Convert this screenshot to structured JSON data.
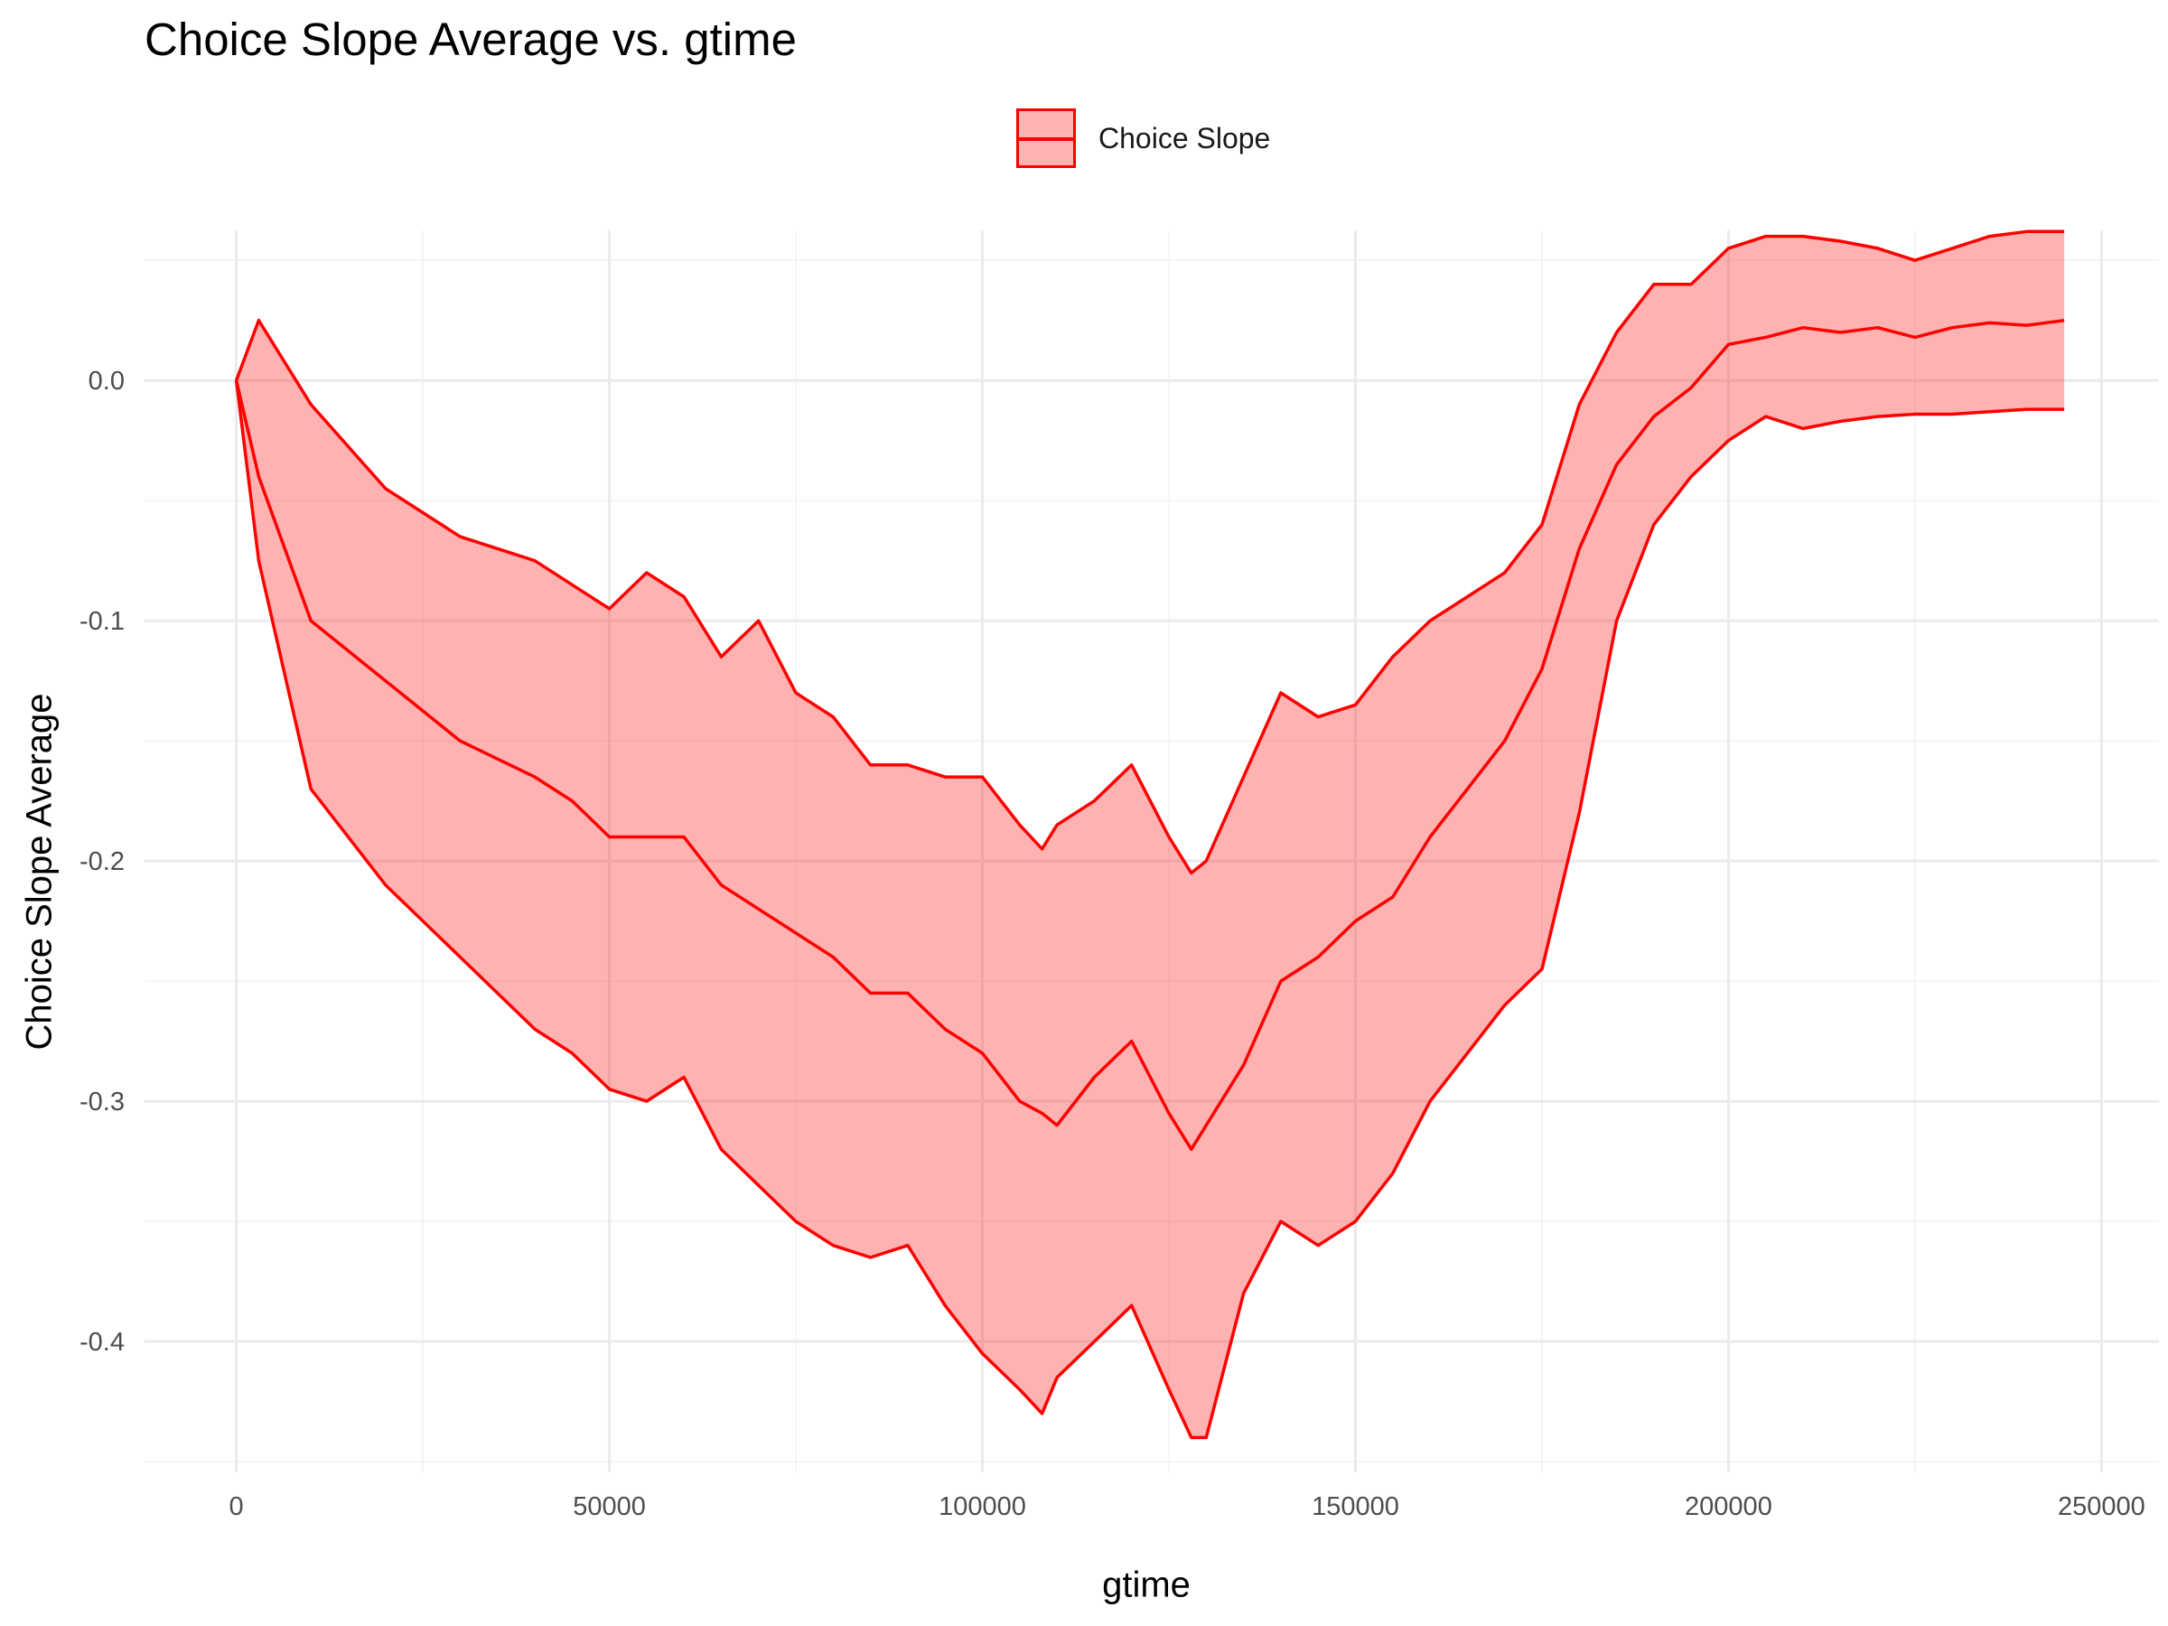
{
  "chart_data": {
    "type": "area",
    "title": "Choice Slope Average vs. gtime",
    "xlabel": "gtime",
    "ylabel": "Choice Slope Average",
    "xlim": [
      -12300,
      257700
    ],
    "ylim": [
      -0.4545,
      0.0625
    ],
    "x_ticks": [
      0,
      50000,
      100000,
      150000,
      200000,
      250000
    ],
    "x_tick_labels": [
      "0",
      "50000",
      "100000",
      "150000",
      "200000",
      "250000"
    ],
    "y_ticks": [
      0.0,
      -0.1,
      -0.2,
      -0.3,
      -0.4
    ],
    "y_tick_labels": [
      "0.0",
      "-0.1",
      "-0.2",
      "-0.3",
      "-0.4"
    ],
    "grid": true,
    "legend_position": "top",
    "legend": [
      {
        "name": "Choice Slope",
        "color": "#ff0000",
        "fill": "#ffb3b3"
      }
    ],
    "series": [
      {
        "name": "Choice Slope",
        "x": [
          0,
          3000,
          10000,
          20000,
          30000,
          40000,
          45000,
          50000,
          55000,
          60000,
          65000,
          70000,
          75000,
          80000,
          85000,
          90000,
          95000,
          100000,
          105000,
          108000,
          110000,
          115000,
          120000,
          125000,
          128000,
          130000,
          135000,
          140000,
          145000,
          150000,
          155000,
          160000,
          165000,
          170000,
          175000,
          180000,
          185000,
          190000,
          195000,
          200000,
          205000,
          210000,
          215000,
          220000,
          225000,
          230000,
          235000,
          240000,
          245000
        ],
        "mean": [
          0.0,
          -0.04,
          -0.1,
          -0.125,
          -0.15,
          -0.165,
          -0.175,
          -0.19,
          -0.19,
          -0.19,
          -0.21,
          -0.22,
          -0.23,
          -0.24,
          -0.255,
          -0.255,
          -0.27,
          -0.28,
          -0.3,
          -0.305,
          -0.31,
          -0.29,
          -0.275,
          -0.305,
          -0.32,
          -0.31,
          -0.285,
          -0.25,
          -0.24,
          -0.225,
          -0.215,
          -0.19,
          -0.17,
          -0.15,
          -0.12,
          -0.07,
          -0.035,
          -0.015,
          -0.003,
          0.015,
          0.018,
          0.022,
          0.02,
          0.022,
          0.018,
          0.022,
          0.024,
          0.023,
          0.025
        ],
        "upper": [
          0.0,
          0.025,
          -0.01,
          -0.045,
          -0.065,
          -0.075,
          -0.085,
          -0.095,
          -0.08,
          -0.09,
          -0.115,
          -0.1,
          -0.13,
          -0.14,
          -0.16,
          -0.16,
          -0.165,
          -0.165,
          -0.185,
          -0.195,
          -0.185,
          -0.175,
          -0.16,
          -0.19,
          -0.205,
          -0.2,
          -0.165,
          -0.13,
          -0.14,
          -0.135,
          -0.115,
          -0.1,
          -0.09,
          -0.08,
          -0.06,
          -0.01,
          0.02,
          0.04,
          0.04,
          0.055,
          0.06,
          0.06,
          0.058,
          0.055,
          0.05,
          0.055,
          0.06,
          0.062,
          0.062
        ],
        "lower": [
          0.0,
          -0.075,
          -0.17,
          -0.21,
          -0.24,
          -0.27,
          -0.28,
          -0.295,
          -0.3,
          -0.29,
          -0.32,
          -0.335,
          -0.35,
          -0.36,
          -0.365,
          -0.36,
          -0.385,
          -0.405,
          -0.42,
          -0.43,
          -0.415,
          -0.4,
          -0.385,
          -0.42,
          -0.44,
          -0.44,
          -0.38,
          -0.35,
          -0.36,
          -0.35,
          -0.33,
          -0.3,
          -0.28,
          -0.26,
          -0.245,
          -0.18,
          -0.1,
          -0.06,
          -0.04,
          -0.025,
          -0.015,
          -0.02,
          -0.017,
          -0.015,
          -0.014,
          -0.014,
          -0.013,
          -0.012,
          -0.012
        ]
      }
    ]
  }
}
